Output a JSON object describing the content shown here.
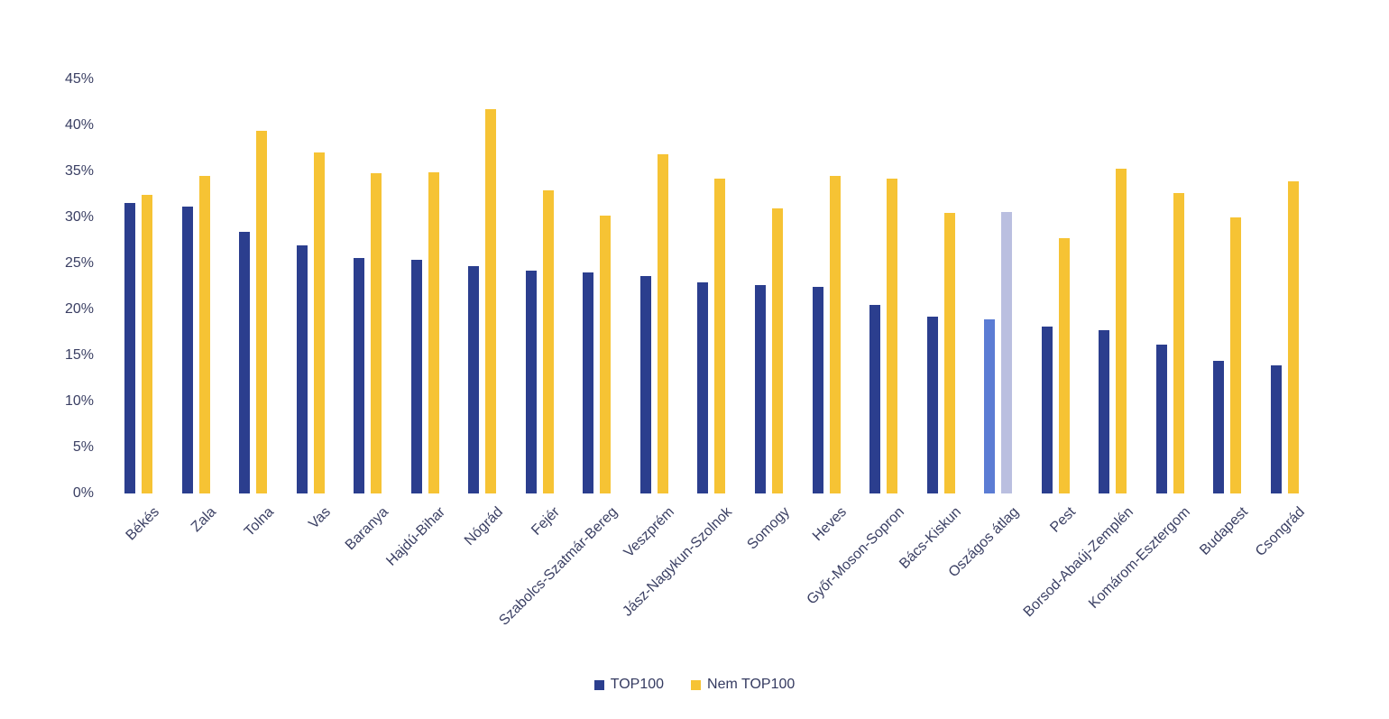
{
  "chart_data": {
    "type": "bar",
    "title": "",
    "xlabel": "",
    "ylabel": "",
    "ylim": [
      0,
      45
    ],
    "ytick_step": 5,
    "ytick_labels": [
      "45%",
      "40%",
      "35%",
      "30%",
      "25%",
      "20%",
      "15%",
      "10%",
      "5%",
      "0%"
    ],
    "grid": false,
    "legend_position": "bottom-center",
    "categories": [
      "Békés",
      "Zala",
      "Tolna",
      "Vas",
      "Baranya",
      "Hajdú-Bihar",
      "Nógrád",
      "Fejér",
      "Szabolcs-Szatmár-Bereg",
      "Veszprém",
      "Jász-Nagykun-Szolnok",
      "Somogy",
      "Heves",
      "Győr-Moson-Sopron",
      "Bács-Kiskun",
      "Oszágos átlag",
      "Pest",
      "Borsod-Abaúj-Zemplén",
      "Komárom-Esztergom",
      "Budapest",
      "Csongrád"
    ],
    "highlight_category": "Oszágos átlag",
    "highlight_index": 15,
    "series": [
      {
        "name": "TOP100",
        "color": "#2b3e8e",
        "highlight_color": "#5b7cd4",
        "values": [
          31.6,
          31.2,
          28.4,
          27.0,
          25.6,
          25.4,
          24.7,
          24.2,
          24.0,
          23.6,
          22.9,
          22.6,
          22.5,
          20.5,
          19.2,
          18.9,
          18.1,
          17.7,
          16.2,
          14.4,
          13.9
        ]
      },
      {
        "name": "Nem TOP100",
        "color": "#f6c334",
        "highlight_color": "#babfe0",
        "values": [
          32.5,
          34.5,
          39.4,
          37.1,
          34.8,
          34.9,
          41.8,
          32.9,
          30.2,
          36.9,
          34.2,
          31.0,
          34.5,
          34.2,
          30.5,
          30.6,
          27.7,
          35.3,
          32.6,
          30.0,
          33.9
        ]
      }
    ]
  },
  "legend": {
    "items": [
      {
        "label": "TOP100",
        "color": "#2b3e8e"
      },
      {
        "label": "Nem TOP100",
        "color": "#f6c334"
      }
    ]
  },
  "colors": {
    "background": "#ffffff",
    "axis_text": "#3a3f63",
    "legend_text": "#343a60"
  }
}
